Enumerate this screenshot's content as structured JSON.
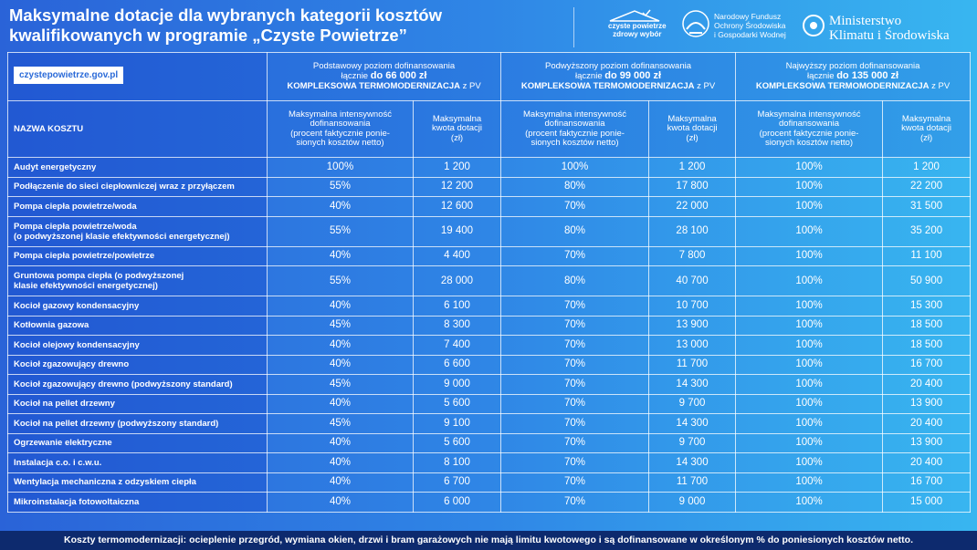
{
  "header": {
    "title_lines": [
      "Maksymalne dotacje dla wybranych kategorii kosztów",
      "kwalifikowanych w programie „Czyste Powietrze”"
    ],
    "logo_czyste": [
      "czyste powietrze",
      "zdrowy wybór"
    ],
    "logo_nfos": [
      "Narodowy Fundusz",
      "Ochrony Środowiska",
      "i Gospodarki Wodnej"
    ],
    "logo_ministry": [
      "Ministerstwo",
      "Klimatu i Środowiska"
    ]
  },
  "table": {
    "website": "czystepowietrze.gov.pl",
    "name_header": "NAZWA KOSZTU",
    "groups": [
      {
        "level": "Podstawowy poziom dofinansowania",
        "prefix": "łącznie ",
        "limit": "do  66 000 zł",
        "scope": "KOMPLEKSOWA TERMOMODERNIZACJA",
        "suffix": " z PV",
        "intensity_header": [
          "Maksymalna intensywność",
          "dofinansowania",
          "(procent faktycznie ponie-",
          "sionych kosztów netto)"
        ],
        "amount_header": [
          "Maksymalna",
          "kwota dotacji",
          "(zł)"
        ]
      },
      {
        "level": "Podwyższony poziom dofinansowania",
        "prefix": "łącznie ",
        "limit": "do 99 000 zł",
        "scope": "KOMPLEKSOWA TERMOMODERNIZACJA",
        "suffix": " z PV",
        "intensity_header": [
          "Maksymalna intensywność",
          "dofinansowania",
          "(procent faktycznie ponie-",
          "sionych kosztów netto)"
        ],
        "amount_header": [
          "Maksymalna",
          "kwota dotacji",
          "(zł)"
        ]
      },
      {
        "level": "Najwyższy poziom dofinansowania",
        "prefix": "łącznie ",
        "limit": "do 135 000 zł",
        "scope": "KOMPLEKSOWA TERMOMODERNIZACJA",
        "suffix": " z PV",
        "intensity_header": [
          "Maksymalna intensywność",
          "dofinansowania",
          "(procent faktycznie ponie-",
          "sionych kosztów netto)"
        ],
        "amount_header": [
          "Maksymalna",
          "kwota dotacji",
          "(zł)"
        ]
      }
    ],
    "rows": [
      {
        "name": [
          "Audyt energetyczny"
        ],
        "values": [
          "100%",
          "1 200",
          "100%",
          "1 200",
          "100%",
          "1 200"
        ]
      },
      {
        "name": [
          "Podłączenie do sieci ciepłowniczej wraz z przyłączem"
        ],
        "values": [
          "55%",
          "12 200",
          "80%",
          "17 800",
          "100%",
          "22 200"
        ]
      },
      {
        "name": [
          "Pompa ciepła powietrze/woda"
        ],
        "values": [
          "40%",
          "12 600",
          "70%",
          "22 000",
          "100%",
          "31 500"
        ]
      },
      {
        "name": [
          "Pompa ciepła powietrze/woda",
          "(o podwyższonej klasie efektywności energetycznej)"
        ],
        "values": [
          "55%",
          "19 400",
          "80%",
          "28 100",
          "100%",
          "35 200"
        ]
      },
      {
        "name": [
          "Pompa ciepła powietrze/powietrze"
        ],
        "values": [
          "40%",
          "4 400",
          "70%",
          "7 800",
          "100%",
          "11 100"
        ]
      },
      {
        "name": [
          "Gruntowa pompa ciepła (o podwyższonej",
          "klasie efektywności energetycznej)"
        ],
        "values": [
          "55%",
          "28 000",
          "80%",
          "40 700",
          "100%",
          "50 900"
        ]
      },
      {
        "name": [
          "Kocioł gazowy kondensacyjny"
        ],
        "values": [
          "40%",
          "6 100",
          "70%",
          "10 700",
          "100%",
          "15 300"
        ]
      },
      {
        "name": [
          "Kotłownia gazowa"
        ],
        "values": [
          "45%",
          "8 300",
          "70%",
          "13 900",
          "100%",
          "18 500"
        ]
      },
      {
        "name": [
          "Kocioł olejowy kondensacyjny"
        ],
        "values": [
          "40%",
          "7 400",
          "70%",
          "13 000",
          "100%",
          "18 500"
        ]
      },
      {
        "name": [
          "Kocioł zgazowujący drewno"
        ],
        "values": [
          "40%",
          "6 600",
          "70%",
          "11 700",
          "100%",
          "16 700"
        ]
      },
      {
        "name": [
          "Kocioł zgazowujący drewno (podwyższony standard)"
        ],
        "values": [
          "45%",
          "9 000",
          "70%",
          "14 300",
          "100%",
          "20 400"
        ]
      },
      {
        "name": [
          "Kocioł na pellet drzewny"
        ],
        "values": [
          "40%",
          "5 600",
          "70%",
          "9 700",
          "100%",
          "13 900"
        ]
      },
      {
        "name": [
          "Kocioł na pellet drzewny (podwyższony standard)"
        ],
        "values": [
          "45%",
          "9 100",
          "70%",
          "14 300",
          "100%",
          "20 400"
        ]
      },
      {
        "name": [
          "Ogrzewanie elektryczne"
        ],
        "values": [
          "40%",
          "5 600",
          "70%",
          "9 700",
          "100%",
          "13 900"
        ]
      },
      {
        "name": [
          "Instalacja c.o. i c.w.u."
        ],
        "values": [
          "40%",
          "8 100",
          "70%",
          "14 300",
          "100%",
          "20 400"
        ]
      },
      {
        "name": [
          "Wentylacja mechaniczna z odzyskiem ciepła"
        ],
        "values": [
          "40%",
          "6 700",
          "70%",
          "11 700",
          "100%",
          "16 700"
        ]
      },
      {
        "name": [
          "Mikroinstalacja fotowoltaiczna"
        ],
        "values": [
          "40%",
          "6 000",
          "70%",
          "9 000",
          "100%",
          "15 000"
        ]
      }
    ]
  },
  "footer": "Koszty  termomodernizacji: ocieplenie przegród, wymiana okien, drzwi i bram garażowych nie mają limitu kwotowego i są dofinansowane w określonym % do poniesionych kosztów netto."
}
